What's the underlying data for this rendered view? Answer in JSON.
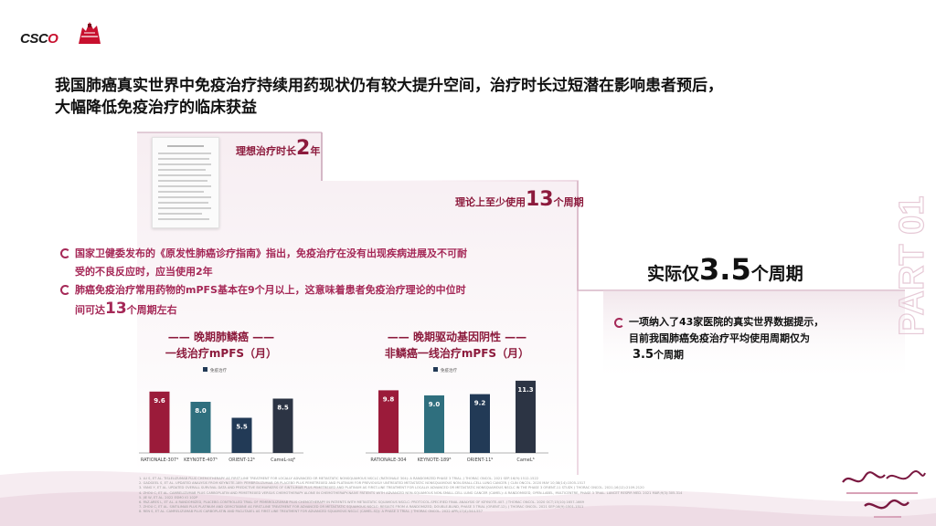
{
  "logo": {
    "text_a": "CSC",
    "text_b": "O"
  },
  "title": {
    "line1": "我国肺癌真实世界中免疫治疗持续用药现状仍有较大提升空间，治疗时长过短潜在影响患者预后，",
    "line2": "大幅降低免疫治疗的临床获益"
  },
  "steps": {
    "ideal_prefix": "理想治疗时长",
    "ideal_value": "2",
    "ideal_unit": "年",
    "theory_prefix": "理论上至少使用",
    "theory_value": "13",
    "theory_unit": "个周期"
  },
  "bullets": {
    "b1_line1": "国家卫健委发布的《原发性肺癌诊疗指南》指出，免疫治疗在没有出现疾病进展及不可耐",
    "b1_line2": "受的不良反应时，应当使用2年",
    "b2_line1": "肺癌免疫治疗常用药物的mPFS基本在9个月以上，这意味着患者免疫治疗理论的中位时",
    "b2_line2a": "间可达",
    "b2_line2b": "13",
    "b2_line2c": "个周期左右"
  },
  "real": {
    "prefix": "实际仅",
    "value": "3.5",
    "unit": "个周期",
    "desc_line1": "一项纳入了43家医院的真实世界数据提示，",
    "desc_line2": "目前我国肺癌免疫治疗平均使用周期仅为",
    "desc_line3a": "3.5",
    "desc_line3b": "个周期"
  },
  "part_label": "PART 01",
  "colors": {
    "accent": "#8c1a3c",
    "bar_red": "#9b1b3a",
    "bar_teal": "#2f6f7e",
    "bar_navy": "#223a56",
    "bar_dark": "#2c3444"
  },
  "chart_data": [
    {
      "type": "bar",
      "title": "晚期肺鳞癌 一线治疗mPFS（月）",
      "title_line1": "晚期肺鳞癌",
      "title_line2": "一线治疗mPFS（月）",
      "legend": [
        "免疫治疗"
      ],
      "categories": [
        "RATIONALE-307⁴",
        "KEYNOTE-407⁵",
        "ORIENT-12⁶",
        "CameL-sq⁸"
      ],
      "values": [
        9.6,
        8.0,
        5.5,
        8.5
      ],
      "ylim": [
        0,
        12
      ]
    },
    {
      "type": "bar",
      "title": "晚期驱动基因阴性 非鳞癌一线治疗mPFS（月）",
      "title_line1": "晚期驱动基因阴性",
      "title_line2": "非鳞癌一线治疗mPFS（月）",
      "legend": [
        "免疫治疗"
      ],
      "categories": [
        "RATIONALE-304",
        "KEYNOTE-189⁸",
        "ORIENT-11⁹",
        "CameL⁶"
      ],
      "values": [
        9.8,
        9.0,
        9.2,
        11.3
      ],
      "ylim": [
        0,
        12
      ]
    }
  ],
  "references": [
    "1. LU S, ET AL. TISLELIZUMAB PLUS CHEMOTHERAPY AS FIRST-LINE TREATMENT FOR LOCALLY ADVANCED OR METASTATIC NONSQUAMOUS NSCLC (RATIONALE 304): A RANDOMIZED PHASE 3 TRIAL. J THORAC ONCOL. 2021 SEP;16(9):1512-1522",
    "2. GADGEEL S, ET AL. UPDATED ANALYSIS FROM KEYNOTE-189: PEMBROLIZUMAB OR PLACEBO PLUS PEMETREXED AND PLATINUM FOR PREVIOUSLY UNTREATED METASTATIC NONSQUAMOUS NON-SMALL-CELL LUNG CANCER. J CLIN ONCOL. 2020 MAY 10;38(14):1505-1517",
    "3. YANG Y, ET AL. UPDATED OVERALL SURVIVAL DATA AND PREDICTIVE BIOMARKERS OF SINTILIMAB PLUS PEMETREXED AND PLATINUM AS FIRST-LINE TREATMENT FOR LOCALLY ADVANCED OR METASTATIC NONSQUAMOUS NSCLC IN THE PHASE 3 ORIENT-11 STUDY. J THORAC ONCOL. 2021;16(12):2109-2120",
    "4. ZHOU C, ET AL. CAMRELIZUMAB PLUS CARBOPLATIN AND PEMETREXED VERSUS CHEMOTHERAPY ALONE IN CHEMOTHERAPY-NAIVE PATIENTS WITH ADVANCED NON-SQUAMOUS NON-SMALL-CELL LUNG CANCER (CAMEL): A RANDOMISED, OPEN-LABEL, MULTICENTRE, PHASE 3 TRIAL. LANCET RESPIR MED. 2021 MAR;9(3):305-314",
    "5. JIE W, ET AL. 2022 ESMO IO 102P",
    "6. PAZ-ARES L, ET AL. A RANDOMIZED, PLACEBO-CONTROLLED TRIAL OF PEMBROLIZUMAB PLUS CHEMOTHERAPY IN PATIENTS WITH METASTATIC SQUAMOUS NSCLC: PROTOCOL-SPECIFIED FINAL ANALYSIS OF KEYNOTE-407. J THORAC ONCOL. 2020 OCT;15(10):1657-1669",
    "7. ZHOU C, ET AL. SINTILIMAB PLUS PLATINUM AND GEMCITABINE AS FIRST-LINE TREATMENT FOR ADVANCED OR METASTATIC SQUAMOUS NSCLC: RESULTS FROM A RANDOMIZED, DOUBLE-BLIND, PHASE 3 TRIAL (ORIENT-12). J THORAC ONCOL. 2021 SEP;16(9):1501-1511",
    "8. REN S, ET AL. CAMRELIZUMAB PLUS CARBOPLATIN AND PACLITAXEL AS FIRST-LINE TREATMENT FOR ADVANCED SQUAMOUS NSCLC (CAMEL-SQ): A PHASE 3 TRIAL. J THORAC ONCOL. 2022 APR;17(4):544-557"
  ]
}
